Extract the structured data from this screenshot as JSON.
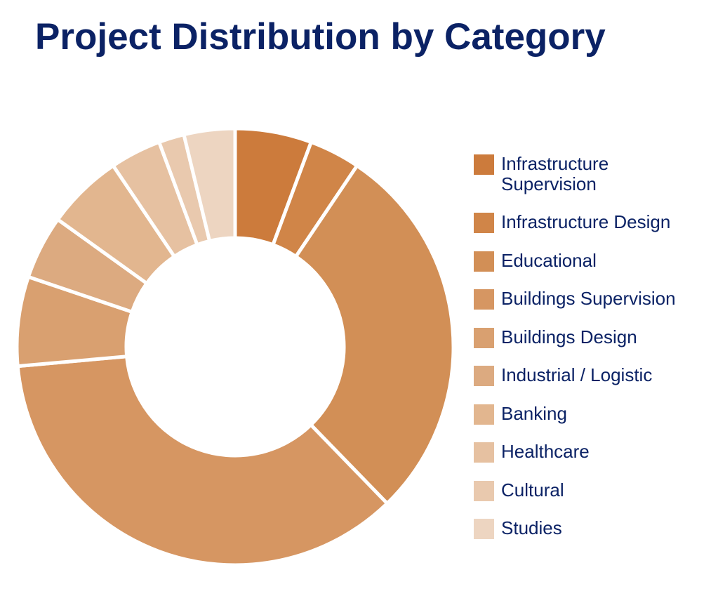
{
  "chart_data": {
    "type": "donut",
    "title": "Project Distribution by Category",
    "categories": [
      "Infrastructure Supervision",
      "Infrastructure Design",
      "Educational",
      "Buildings Supervision",
      "Buildings Design",
      "Industrial / Logistic",
      "Banking",
      "Healthcare",
      "Cultural",
      "Studies"
    ],
    "values": [
      6,
      4,
      30,
      38,
      7,
      5,
      6,
      4,
      2,
      4
    ],
    "colors": [
      "#cc7b3c",
      "#d08548",
      "#d28f56",
      "#d69662",
      "#d9a070",
      "#dcaa80",
      "#e2b68f",
      "#e6c1a1",
      "#e9c9ae",
      "#edd5c1"
    ],
    "legend_position": "right",
    "start_angle_deg": 0,
    "direction": "clockwise"
  }
}
